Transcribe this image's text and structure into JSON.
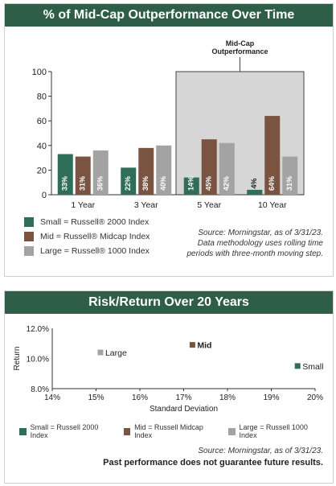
{
  "colors": {
    "small": "#2f6e57",
    "mid": "#7a5440",
    "large": "#a3a3a3",
    "header": "#2f5e48",
    "highlight": "#d6d6d6"
  },
  "section1": {
    "title": "% of Mid-Cap Outperformance Over Time",
    "highlight_label_line1": "Mid-Cap",
    "highlight_label_line2": "Outperformance",
    "legend": [
      {
        "key": "small",
        "label": "Small = Russell® 2000 Index"
      },
      {
        "key": "mid",
        "label": "Mid = Russell® Midcap Index"
      },
      {
        "key": "large",
        "label": "Large = Russell® 1000 Index"
      }
    ],
    "source_lines": [
      "Source: Morningstar, as of 3/31/23.",
      "Data methodology uses rolling time",
      "periods with three-month moving step."
    ]
  },
  "section2": {
    "title": "Risk/Return Over 20 Years",
    "legend": [
      {
        "key": "small",
        "label": "Small = Russell 2000 Index"
      },
      {
        "key": "mid",
        "label": "Mid = Russell Midcap Index"
      },
      {
        "key": "large",
        "label": "Large = Russell 1000 Index"
      }
    ],
    "source": "Source: Morningstar, as of 3/31/23.",
    "disclaimer": "Past performance does not guarantee future results."
  },
  "chart_data": [
    {
      "type": "bar",
      "title": "% of Mid-Cap Outperformance Over Time",
      "categories": [
        "1 Year",
        "3 Year",
        "5 Year",
        "10 Year"
      ],
      "series": [
        {
          "name": "Small",
          "values": [
            33,
            22,
            14,
            4
          ]
        },
        {
          "name": "Mid",
          "values": [
            31,
            38,
            45,
            64
          ]
        },
        {
          "name": "Large",
          "values": [
            36,
            40,
            42,
            31
          ]
        }
      ],
      "data_labels": [
        [
          "33%",
          "31%",
          "36%"
        ],
        [
          "22%",
          "38%",
          "40%"
        ],
        [
          "14%",
          "45%",
          "42%"
        ],
        [
          "4%",
          "64%",
          "31%"
        ]
      ],
      "ylim": [
        0,
        100
      ],
      "yticks": [
        0,
        20,
        40,
        60,
        80,
        100
      ],
      "highlighted_categories": [
        "5 Year",
        "10 Year"
      ]
    },
    {
      "type": "scatter",
      "title": "Risk/Return Over 20 Years",
      "xlabel": "Standard Deviation",
      "ylabel": "Return",
      "xlim": [
        14,
        20
      ],
      "ylim": [
        8,
        12
      ],
      "xticks": [
        "14%",
        "15%",
        "16%",
        "17%",
        "18%",
        "19%",
        "20%"
      ],
      "yticks": [
        "8.0%",
        "10.0%",
        "12.0%"
      ],
      "points": [
        {
          "name": "Large",
          "key": "large",
          "x": 15.1,
          "y": 10.4
        },
        {
          "name": "Mid",
          "key": "mid",
          "x": 17.2,
          "y": 10.9
        },
        {
          "name": "Small",
          "key": "small",
          "x": 19.6,
          "y": 9.5
        }
      ]
    }
  ]
}
